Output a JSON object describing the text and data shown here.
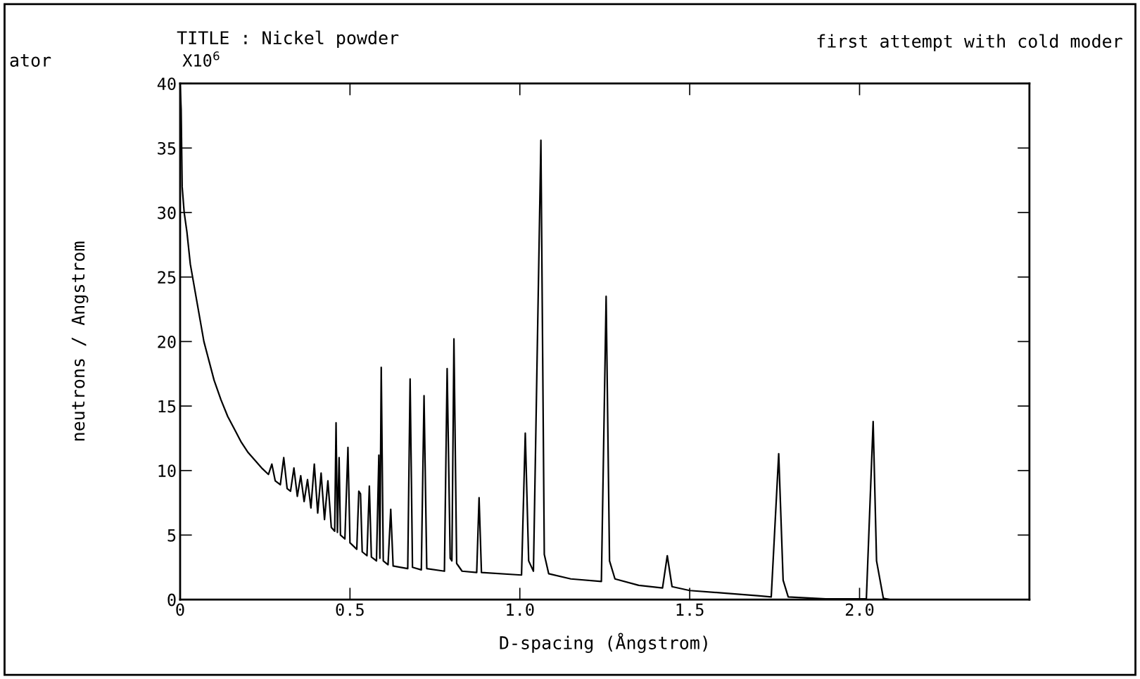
{
  "chart_data": {
    "type": "line",
    "title": "TITLE : Nickel powder",
    "subtitle": "X10$^{6}$",
    "xlabel": "D-spacing (Ångstrom)",
    "ylabel": "neutrons / Angstrom",
    "annotations": [
      "first attempt with cold moder",
      "ator"
    ],
    "xlim": [
      0,
      2.5
    ],
    "ylim": [
      0,
      40
    ],
    "xticks": [
      {
        "value": 0,
        "label": "0"
      },
      {
        "value": 0.5,
        "label": "0.5"
      },
      {
        "value": 1.0,
        "label": "1.0"
      },
      {
        "value": 1.5,
        "label": "1.5"
      },
      {
        "value": 2.0,
        "label": "2.0"
      }
    ],
    "yticks": [
      0,
      5,
      10,
      15,
      20,
      25,
      30,
      35,
      40
    ],
    "grid": false,
    "legend": false,
    "marker": "none",
    "line_style": "solid",
    "series": [
      {
        "color": "#000000",
        "x": [
          0,
          0.003,
          0.006,
          0.012,
          0.02,
          0.03,
          0.04,
          0.05,
          0.06,
          0.07,
          0.085,
          0.1,
          0.12,
          0.14,
          0.16,
          0.18,
          0.2,
          0.22,
          0.24,
          0.26,
          0.27,
          0.28,
          0.295,
          0.305,
          0.315,
          0.325,
          0.335,
          0.345,
          0.355,
          0.365,
          0.375,
          0.385,
          0.395,
          0.405,
          0.415,
          0.425,
          0.435,
          0.445,
          0.455,
          0.459,
          0.463,
          0.468,
          0.472,
          0.485,
          0.494,
          0.5,
          0.52,
          0.526,
          0.531,
          0.536,
          0.55,
          0.557,
          0.563,
          0.578,
          0.585,
          0.588,
          0.592,
          0.598,
          0.612,
          0.62,
          0.627,
          0.67,
          0.677,
          0.684,
          0.71,
          0.718,
          0.726,
          0.778,
          0.786,
          0.795,
          0.8,
          0.806,
          0.814,
          0.83,
          0.873,
          0.88,
          0.887,
          1.005,
          1.016,
          1.026,
          1.04,
          1.062,
          1.072,
          1.085,
          1.15,
          1.24,
          1.254,
          1.264,
          1.28,
          1.35,
          1.42,
          1.434,
          1.448,
          1.5,
          1.6,
          1.7,
          1.74,
          1.762,
          1.775,
          1.79,
          1.9,
          2.02,
          2.04,
          2.05,
          2.07,
          2.09
        ],
        "values": [
          40,
          38,
          32,
          30,
          28.5,
          26,
          24.5,
          23,
          21.5,
          20,
          18.5,
          17,
          15.5,
          14.2,
          13.2,
          12.2,
          11.4,
          10.8,
          10.2,
          9.7,
          10.5,
          9.2,
          8.9,
          11.0,
          8.6,
          8.4,
          10.2,
          8.0,
          9.6,
          7.6,
          9.3,
          7.1,
          10.5,
          6.7,
          9.8,
          6.2,
          9.2,
          5.6,
          5.3,
          13.7,
          5.2,
          11.0,
          5.0,
          4.7,
          11.8,
          4.4,
          3.9,
          8.4,
          8.2,
          3.7,
          3.4,
          8.8,
          3.3,
          3.0,
          11.2,
          3.2,
          18.0,
          3.0,
          2.7,
          7.0,
          2.6,
          2.4,
          17.1,
          2.5,
          2.3,
          15.8,
          2.4,
          2.2,
          17.9,
          3.2,
          3.0,
          20.2,
          2.8,
          2.2,
          2.1,
          7.9,
          2.1,
          1.9,
          12.9,
          3.0,
          2.2,
          35.6,
          3.5,
          2.0,
          1.6,
          1.4,
          23.5,
          3.0,
          1.6,
          1.1,
          0.9,
          3.4,
          1.0,
          0.7,
          0.5,
          0.3,
          0.2,
          11.3,
          1.5,
          0.2,
          0.05,
          0.05,
          13.8,
          3.0,
          0.1,
          0
        ]
      }
    ]
  }
}
